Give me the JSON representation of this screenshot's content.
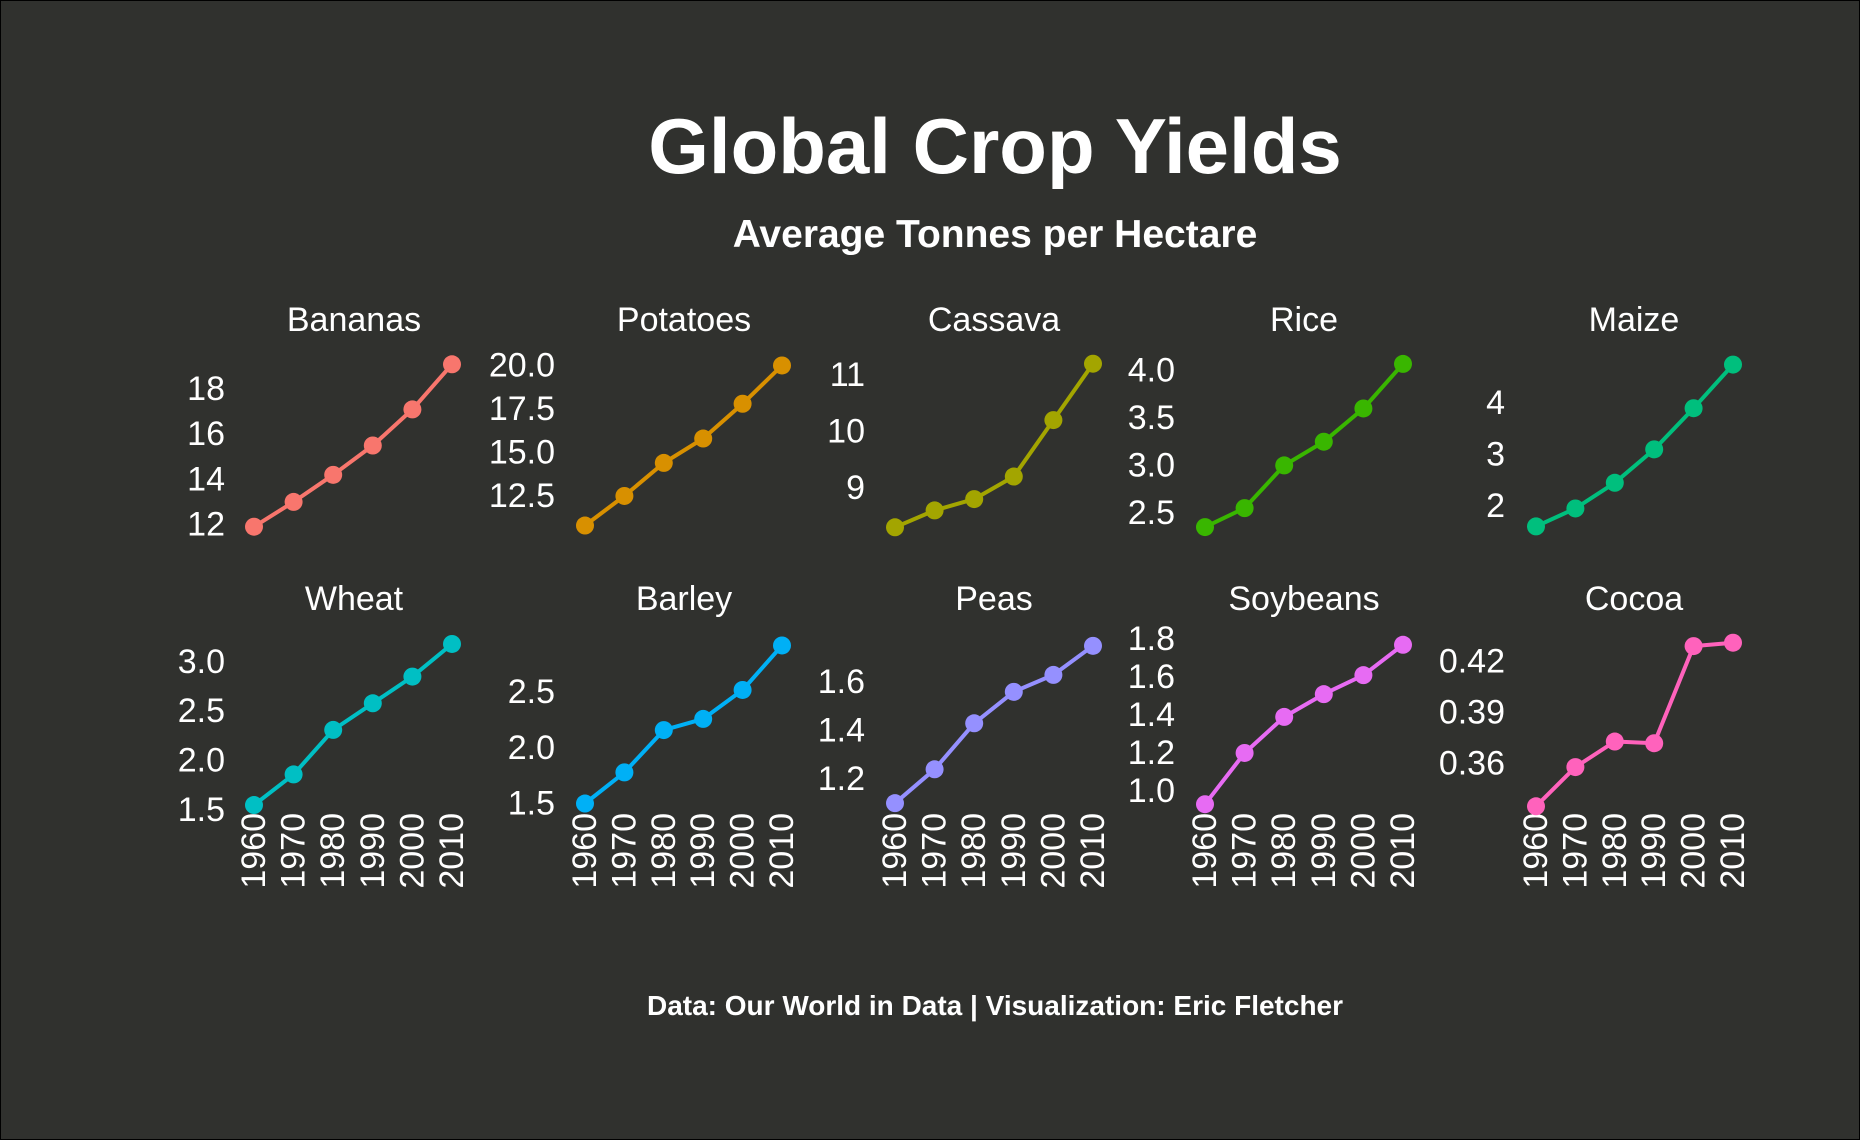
{
  "colors": {
    "background": "#30312E",
    "text": "#ffffff"
  },
  "chart_data": {
    "type": "line",
    "title": "Global Crop Yields",
    "subtitle": "Average Tonnes per Hectare",
    "caption": "Data: Our World in Data | Visualization: Eric Fletcher",
    "x": [
      1960,
      1970,
      1980,
      1990,
      2000,
      2010
    ],
    "x_tick_labels": [
      "1960",
      "1970",
      "1980",
      "1990",
      "2000",
      "2010"
    ],
    "grid": false,
    "legend": "none",
    "panels": [
      {
        "name": "Bananas",
        "color": "#F8766D",
        "values": [
          11.9,
          13.0,
          14.2,
          15.5,
          17.1,
          19.1
        ],
        "ylim": [
          11.8,
          19.2
        ],
        "y_ticks": [
          12,
          14,
          16,
          18
        ],
        "y_tick_labels": [
          "12",
          "14",
          "16",
          "18"
        ]
      },
      {
        "name": "Potatoes",
        "color": "#D89000",
        "values": [
          10.8,
          12.5,
          14.4,
          15.8,
          17.8,
          20.0
        ],
        "ylim": [
          10.6,
          20.2
        ],
        "y_ticks": [
          12.5,
          15.0,
          17.5,
          20.0
        ],
        "y_tick_labels": [
          "12.5",
          "15.0",
          "17.5",
          "20.0"
        ]
      },
      {
        "name": "Cassava",
        "color": "#A3A500",
        "values": [
          8.3,
          8.6,
          8.8,
          9.2,
          10.2,
          11.2
        ],
        "ylim": [
          8.27,
          11.23
        ],
        "y_ticks": [
          9,
          10,
          11
        ],
        "y_tick_labels": [
          "9",
          "10",
          "11"
        ]
      },
      {
        "name": "Rice",
        "color": "#39B600",
        "values": [
          2.35,
          2.55,
          3.0,
          3.25,
          3.6,
          4.07
        ],
        "ylim": [
          2.33,
          4.09
        ],
        "y_ticks": [
          2.5,
          3.0,
          3.5,
          4.0
        ],
        "y_tick_labels": [
          "2.5",
          "3.0",
          "3.5",
          "4.0"
        ]
      },
      {
        "name": "Maize",
        "color": "#00BF7D",
        "values": [
          1.6,
          1.95,
          2.45,
          3.1,
          3.9,
          4.75
        ],
        "ylim": [
          1.55,
          4.8
        ],
        "y_ticks": [
          2,
          3,
          4
        ],
        "y_tick_labels": [
          "2",
          "3",
          "4"
        ]
      },
      {
        "name": "Wheat",
        "color": "#00BFC4",
        "values": [
          1.55,
          1.86,
          2.31,
          2.58,
          2.85,
          3.18
        ],
        "ylim": [
          1.52,
          3.21
        ],
        "y_ticks": [
          1.5,
          2.0,
          2.5,
          3.0
        ],
        "y_tick_labels": [
          "1.5",
          "2.0",
          "2.5",
          "3.0"
        ]
      },
      {
        "name": "Barley",
        "color": "#00B0F6",
        "values": [
          1.5,
          1.78,
          2.16,
          2.26,
          2.52,
          2.92
        ],
        "ylim": [
          1.46,
          2.96
        ],
        "y_ticks": [
          1.5,
          2.0,
          2.5
        ],
        "y_tick_labels": [
          "1.5",
          "2.0",
          "2.5"
        ]
      },
      {
        "name": "Peas",
        "color": "#9590FF",
        "values": [
          1.1,
          1.24,
          1.43,
          1.56,
          1.63,
          1.75
        ],
        "ylim": [
          1.08,
          1.77
        ],
        "y_ticks": [
          1.2,
          1.4,
          1.6
        ],
        "y_tick_labels": [
          "1.2",
          "1.4",
          "1.6"
        ]
      },
      {
        "name": "Soybeans",
        "color": "#E76BF3",
        "values": [
          0.93,
          1.2,
          1.39,
          1.51,
          1.61,
          1.77
        ],
        "ylim": [
          0.91,
          1.79
        ],
        "y_ticks": [
          1.0,
          1.2,
          1.4,
          1.6,
          1.8
        ],
        "y_tick_labels": [
          "1.0",
          "1.2",
          "1.4",
          "1.6",
          "1.8"
        ]
      },
      {
        "name": "Cocoa",
        "color": "#FF62BC",
        "values": [
          0.335,
          0.358,
          0.373,
          0.372,
          0.429,
          0.431
        ],
        "ylim": [
          0.334,
          0.432
        ],
        "y_ticks": [
          0.36,
          0.39,
          0.42
        ],
        "y_tick_labels": [
          "0.36",
          "0.39",
          "0.42"
        ]
      }
    ]
  }
}
